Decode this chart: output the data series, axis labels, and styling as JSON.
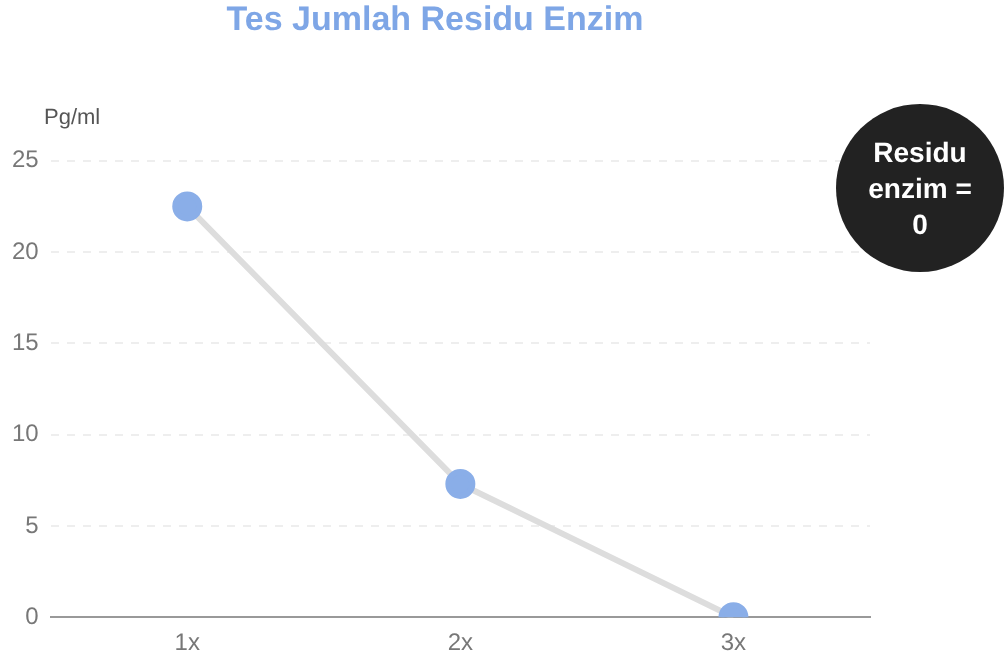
{
  "chart_data": {
    "type": "line",
    "title": "Tes Jumlah Residu Enzim",
    "ylabel": "Pg/ml",
    "categories": [
      "1x",
      "2x",
      "3x"
    ],
    "series": [
      {
        "color": "#8aaee8",
        "values": [
          22.5,
          7.3,
          0
        ]
      }
    ],
    "ylim": [
      0,
      25
    ],
    "yticks": [
      0,
      5,
      10,
      15,
      20,
      25
    ],
    "grid": "y",
    "legend": false,
    "marker": "circle",
    "annotations": [
      "Residu enzim = 0"
    ]
  }
}
